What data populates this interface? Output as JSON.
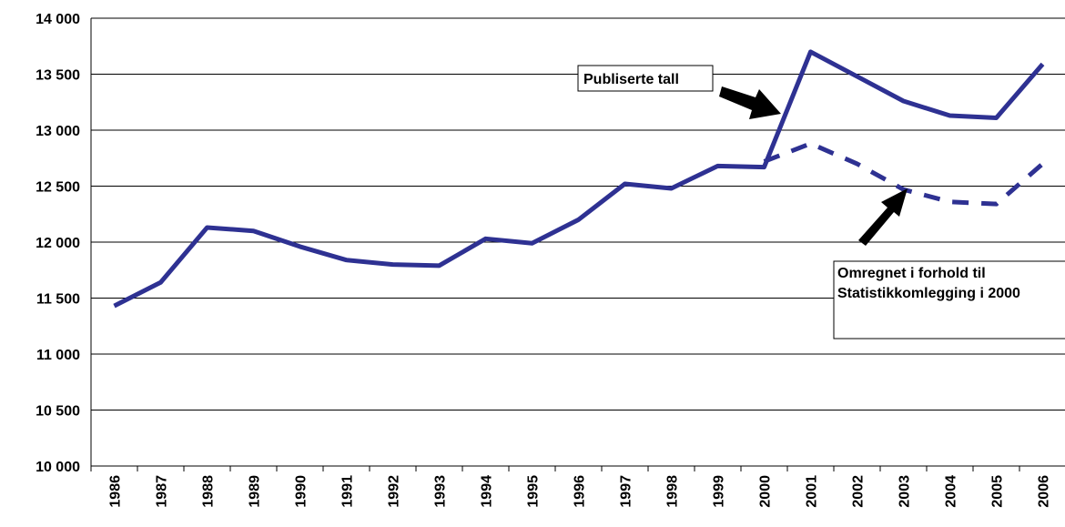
{
  "chart_data": {
    "type": "line",
    "categories": [
      "1986",
      "1987",
      "1988",
      "1989",
      "1990",
      "1991",
      "1992",
      "1993",
      "1994",
      "1995",
      "1996",
      "1997",
      "1998",
      "1999",
      "2000",
      "2001",
      "2002",
      "2003",
      "2004",
      "2005",
      "2006"
    ],
    "series": [
      {
        "name": "Publiserte tall",
        "color": "#2e3192",
        "dash": false,
        "values": [
          11430,
          11640,
          12130,
          12100,
          11960,
          11840,
          11800,
          11790,
          12030,
          11990,
          12200,
          12520,
          12480,
          12680,
          12670,
          13700,
          13480,
          13260,
          13130,
          13110,
          13590
        ]
      },
      {
        "name": "Omregnet i forhold til Statistikkomlegging i 2000",
        "color": "#2e3192",
        "dash": true,
        "values": [
          null,
          null,
          null,
          null,
          null,
          null,
          null,
          null,
          null,
          null,
          null,
          null,
          null,
          null,
          12720,
          12880,
          12700,
          12470,
          12360,
          12340,
          12700
        ]
      }
    ],
    "ylim": [
      10000,
      14000
    ],
    "yticks": [
      {
        "value": 10000,
        "label": "10 000"
      },
      {
        "value": 10500,
        "label": "10 500"
      },
      {
        "value": 11000,
        "label": "11 000"
      },
      {
        "value": 11500,
        "label": "11 500"
      },
      {
        "value": 12000,
        "label": "12 000"
      },
      {
        "value": 12500,
        "label": "12 500"
      },
      {
        "value": 13000,
        "label": "13 000"
      },
      {
        "value": 13500,
        "label": "13 500"
      },
      {
        "value": 14000,
        "label": "14 000"
      }
    ],
    "grid": true
  }
}
